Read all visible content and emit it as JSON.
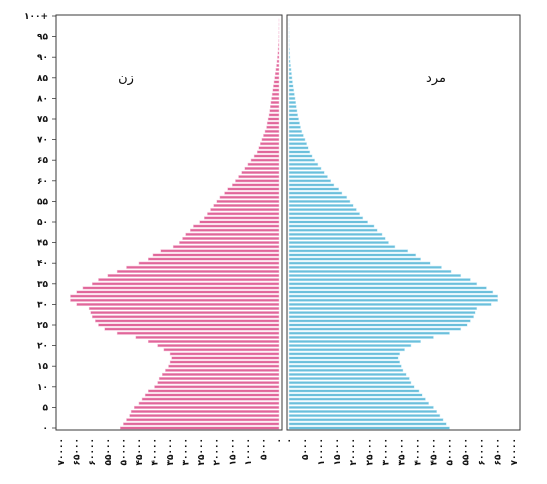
{
  "chart_data": {
    "type": "bar",
    "orientation": "horizontal",
    "subtype": "population-pyramid",
    "title": "",
    "panels": [
      {
        "name": "زن",
        "side": "left",
        "color": "#e0669a",
        "edge_color": "#f6c4da"
      },
      {
        "name": "مرد",
        "side": "right",
        "color": "#6bbfdb",
        "edge_color": "#cfeef9"
      }
    ],
    "age_axis": {
      "tick_labels": [
        "۰",
        "۵",
        "۱۰",
        "۱۵",
        "۲۰",
        "۲۵",
        "۳۰",
        "۳۵",
        "۴۰",
        "۴۵",
        "۵۰",
        "۵۵",
        "۶۰",
        "۶۵",
        "۷۰",
        "۷۵",
        "۸۰",
        "۸۵",
        "۹۰",
        "۹۵",
        "۱۰۰+"
      ],
      "tick_values": [
        0,
        5,
        10,
        15,
        20,
        25,
        30,
        35,
        40,
        45,
        50,
        55,
        60,
        65,
        70,
        75,
        80,
        85,
        90,
        95,
        100
      ]
    },
    "x_left": {
      "ticks": [
        0,
        5000,
        10000,
        15000,
        20000,
        25000,
        30000,
        35000,
        40000,
        45000,
        50000,
        55000,
        60000,
        65000,
        70000
      ],
      "tick_labels": [
        "۰",
        "۵۰۰۰",
        "۱۰۰۰۰",
        "۱۵۰۰۰",
        "۲۰۰۰۰",
        "۲۵۰۰۰",
        "۳۰۰۰۰",
        "۳۵۰۰۰",
        "۴۰۰۰۰",
        "۴۵۰۰۰",
        "۵۰۰۰۰",
        "۵۵۰۰۰",
        "۶۰۰۰۰",
        "۶۵۰۰۰",
        "۷۰۰۰۰"
      ],
      "range": [
        0,
        71000
      ]
    },
    "x_right": {
      "ticks": [
        0,
        5000,
        10000,
        15000,
        20000,
        25000,
        30000,
        35000,
        40000,
        45000,
        50000,
        55000,
        60000,
        65000,
        70000
      ],
      "tick_labels": [
        "۰",
        "۵۰۰۰",
        "۱۰۰۰۰",
        "۱۵۰۰۰",
        "۲۰۰۰۰",
        "۲۵۰۰۰",
        "۳۰۰۰۰",
        "۳۵۰۰۰",
        "۴۰۰۰۰",
        "۴۵۰۰۰",
        "۵۰۰۰۰",
        "۵۵۰۰۰",
        "۶۰۰۰۰",
        "۶۵۰۰۰",
        "۷۰۰۰۰"
      ],
      "range": [
        0,
        71000
      ]
    },
    "series": [
      {
        "name": "زن",
        "values": [
          51000,
          50000,
          49000,
          48000,
          47500,
          46500,
          45000,
          44000,
          43000,
          42000,
          40000,
          39000,
          38500,
          37500,
          36500,
          35500,
          35000,
          34500,
          35000,
          37000,
          39000,
          42000,
          46000,
          52000,
          56000,
          58000,
          59000,
          60000,
          60500,
          61000,
          65000,
          67000,
          67000,
          65000,
          63000,
          60000,
          58000,
          55000,
          52000,
          49000,
          45000,
          42000,
          40500,
          38000,
          34000,
          32000,
          31000,
          30000,
          28500,
          27500,
          25500,
          24000,
          23000,
          22000,
          21000,
          20000,
          19000,
          17500,
          16500,
          15000,
          14000,
          13000,
          12000,
          11000,
          10000,
          9000,
          8000,
          7000,
          6500,
          6000,
          5500,
          5000,
          4500,
          4000,
          3800,
          3500,
          3200,
          3000,
          2800,
          2600,
          2400,
          2200,
          2000,
          1800,
          1600,
          1400,
          1200,
          1000,
          800,
          650,
          500,
          400,
          300,
          220,
          160,
          110,
          70,
          40,
          20,
          10,
          0
        ]
      },
      {
        "name": "مرد",
        "values": [
          50000,
          49000,
          48000,
          47000,
          46000,
          45000,
          43500,
          42500,
          41500,
          40500,
          39000,
          38000,
          37500,
          36500,
          35500,
          35000,
          34500,
          34000,
          34500,
          36000,
          38000,
          41000,
          45000,
          50000,
          53500,
          55500,
          56500,
          57500,
          58000,
          58500,
          63000,
          65000,
          65000,
          63500,
          61500,
          58500,
          56500,
          53500,
          50500,
          47500,
          44000,
          41000,
          39500,
          37000,
          33000,
          31000,
          30000,
          29000,
          27500,
          26500,
          24500,
          23000,
          22000,
          21000,
          20000,
          19000,
          18000,
          16500,
          15500,
          14000,
          13000,
          12000,
          11000,
          10000,
          9000,
          8000,
          7200,
          6500,
          6000,
          5500,
          5000,
          4500,
          4000,
          3600,
          3300,
          3000,
          2700,
          2500,
          2300,
          2100,
          1900,
          1700,
          1500,
          1300,
          1100,
          950,
          800,
          650,
          500,
          400,
          300,
          230,
          160,
          110,
          70,
          40,
          20,
          10,
          5,
          2,
          0
        ]
      }
    ],
    "grid": false,
    "legend": "none"
  }
}
